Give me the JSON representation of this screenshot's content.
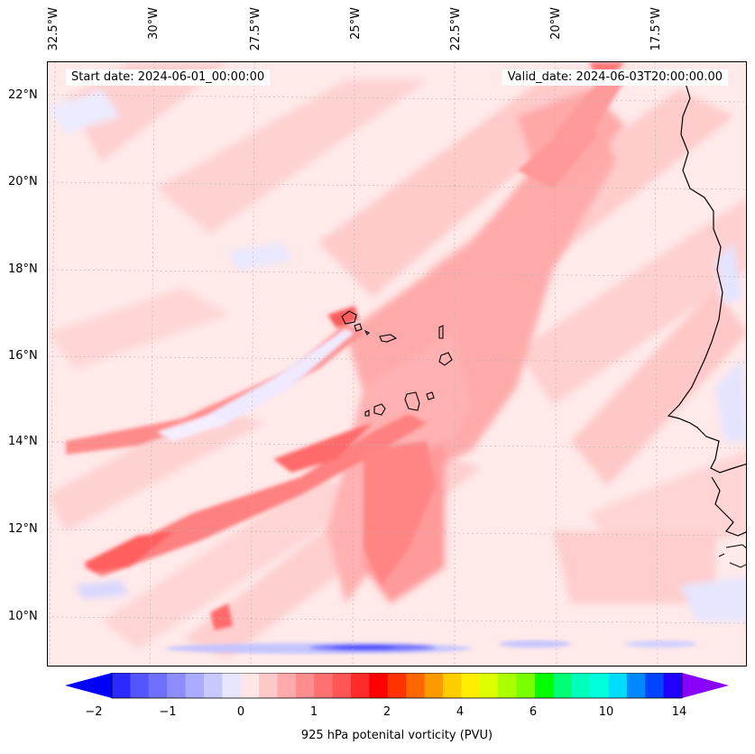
{
  "header": {
    "start_date": "Start date: 2024-06-01_00:00:00",
    "valid_date": "Valid_date: 2024-06-03T20:00:00.00"
  },
  "axes": {
    "longitude_labels": [
      "32.5°W",
      "30°W",
      "27.5°W",
      "25°W",
      "22.5°W",
      "20°W",
      "17.5°W"
    ],
    "latitude_labels": [
      "22°N",
      "20°N",
      "18°N",
      "16°N",
      "14°N",
      "12°N",
      "10°N"
    ]
  },
  "colorbar": {
    "label": "925 hPa potenital vorticity (PVU)",
    "tick_labels": [
      "−2",
      "−1",
      "0",
      "1",
      "2",
      "4",
      "6",
      "10",
      "14"
    ],
    "colors": [
      "#0000ff",
      "#2a2aff",
      "#5555ff",
      "#7070ff",
      "#8d8dff",
      "#aaaaff",
      "#c8c8ff",
      "#e6e6ff",
      "#ffe6e6",
      "#ffc8c8",
      "#ffaaaa",
      "#ff8d8d",
      "#ff7070",
      "#ff5555",
      "#ff2a2a",
      "#ff0000",
      "#ff3300",
      "#ff6600",
      "#ff9900",
      "#ffcc00",
      "#ffee00",
      "#ddff00",
      "#aaff00",
      "#77ff00",
      "#00ff00",
      "#00ff77",
      "#00ffbb",
      "#00ffdd",
      "#00ddff",
      "#0088ff",
      "#0044ff",
      "#2200ff",
      "#8800ff"
    ]
  },
  "map": {
    "background_color": "#ffe9e9",
    "coastline_color": "#000000"
  }
}
